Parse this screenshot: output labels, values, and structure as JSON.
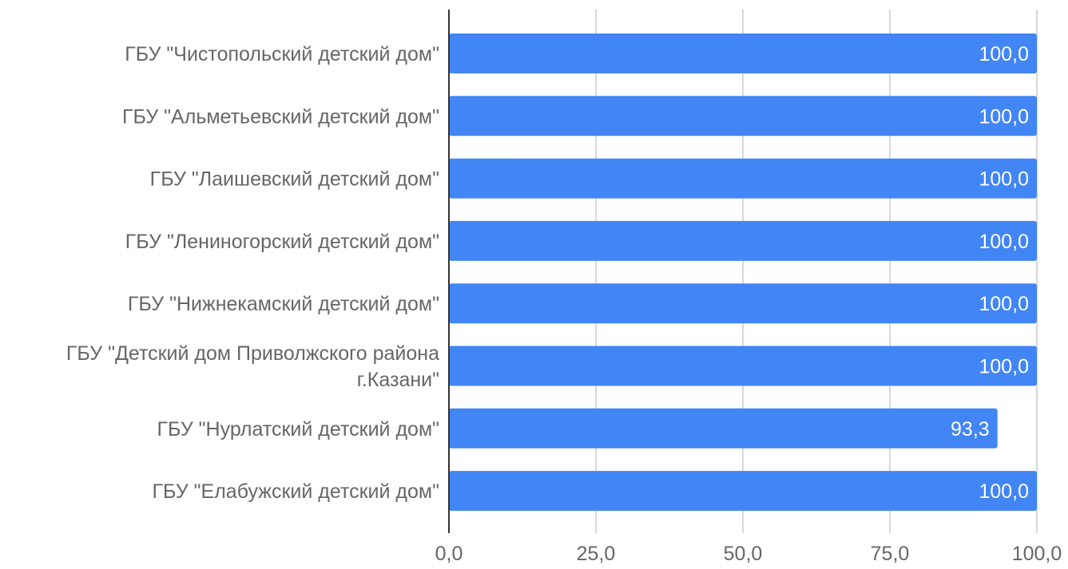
{
  "chart_data": {
    "type": "bar",
    "orientation": "horizontal",
    "categories": [
      [
        "ГБУ \"Чистопольский  детский дом\""
      ],
      [
        "ГБУ \"Альметьевский детский дом\""
      ],
      [
        "ГБУ \"Лаишевский детский дом\""
      ],
      [
        "ГБУ \"Лениногорский детский дом\""
      ],
      [
        "ГБУ \"Нижнекамский детский дом\""
      ],
      [
        "ГБУ \"Детский дом Приволжского района",
        "г.Казани\""
      ],
      [
        "ГБУ \"Нурлатский детский дом\""
      ],
      [
        "ГБУ \"Елабужский детский дом\""
      ]
    ],
    "values": [
      100.0,
      100.0,
      100.0,
      100.0,
      100.0,
      100.0,
      93.3,
      100.0
    ],
    "data_labels": [
      "100,0",
      "100,0",
      "100,0",
      "100,0",
      "100,0",
      "100,0",
      "93,3",
      "100,0"
    ],
    "xlim": [
      0,
      100
    ],
    "x_ticks": [
      0,
      25,
      50,
      75,
      100
    ],
    "x_tick_labels": [
      "0,0",
      "25,0",
      "50,0",
      "75,0",
      "100,0"
    ],
    "grid": true,
    "legend": "none",
    "title": "",
    "xlabel": "",
    "ylabel": ""
  },
  "colors": {
    "bar": "#4285f4",
    "grid": "#cccccc",
    "axis": "#333333",
    "label_text": "#666666",
    "data_label_text": "#ffffff"
  }
}
